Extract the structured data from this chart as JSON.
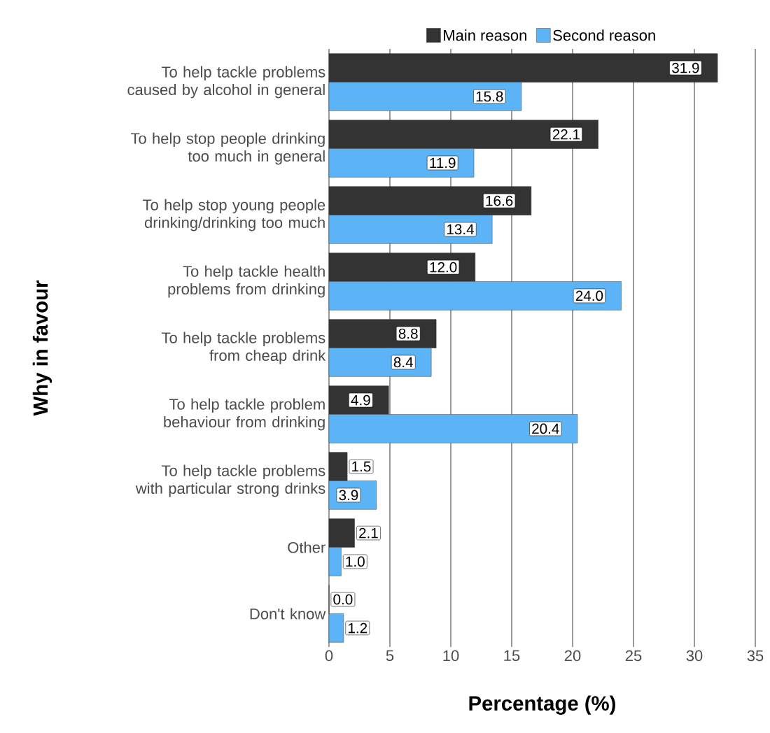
{
  "chart_data": {
    "type": "bar",
    "orientation": "horizontal",
    "xlabel": "Percentage (%)",
    "ylabel": "Why in favour",
    "categories": [
      "To help tackle problems caused by alcohol in general",
      "To help stop people drinking too much in general",
      "To help stop young people drinking/drinking too much",
      "To help tackle health problems from drinking",
      "To help tackle problems from cheap drink",
      "To help tackle problem behaviour from drinking",
      "To help tackle problems with particular strong drinks",
      "Other",
      "Don't know"
    ],
    "series": [
      {
        "name": "Main reason",
        "color": "#333333",
        "values": [
          31.9,
          22.1,
          16.6,
          12.0,
          8.8,
          4.9,
          1.5,
          2.1,
          0.0
        ],
        "value_labels": [
          "31.9",
          "22.1",
          "16.6",
          "12.0",
          "8.8",
          "4.9",
          "1.5",
          "2.1",
          "0.0"
        ]
      },
      {
        "name": "Second reason",
        "color": "#5cb4f7",
        "values": [
          15.8,
          11.9,
          13.4,
          24.0,
          8.4,
          20.4,
          3.9,
          1.0,
          1.2
        ],
        "value_labels": [
          "15.8",
          "11.9",
          "13.4",
          "24.0",
          "8.4",
          "20.4",
          "3.9",
          "1.0",
          "1.2"
        ]
      }
    ],
    "xlim": [
      0,
      35
    ],
    "xticks": [
      0,
      5,
      10,
      15,
      20,
      25,
      30,
      35
    ],
    "grid": "x",
    "legend": "top"
  }
}
